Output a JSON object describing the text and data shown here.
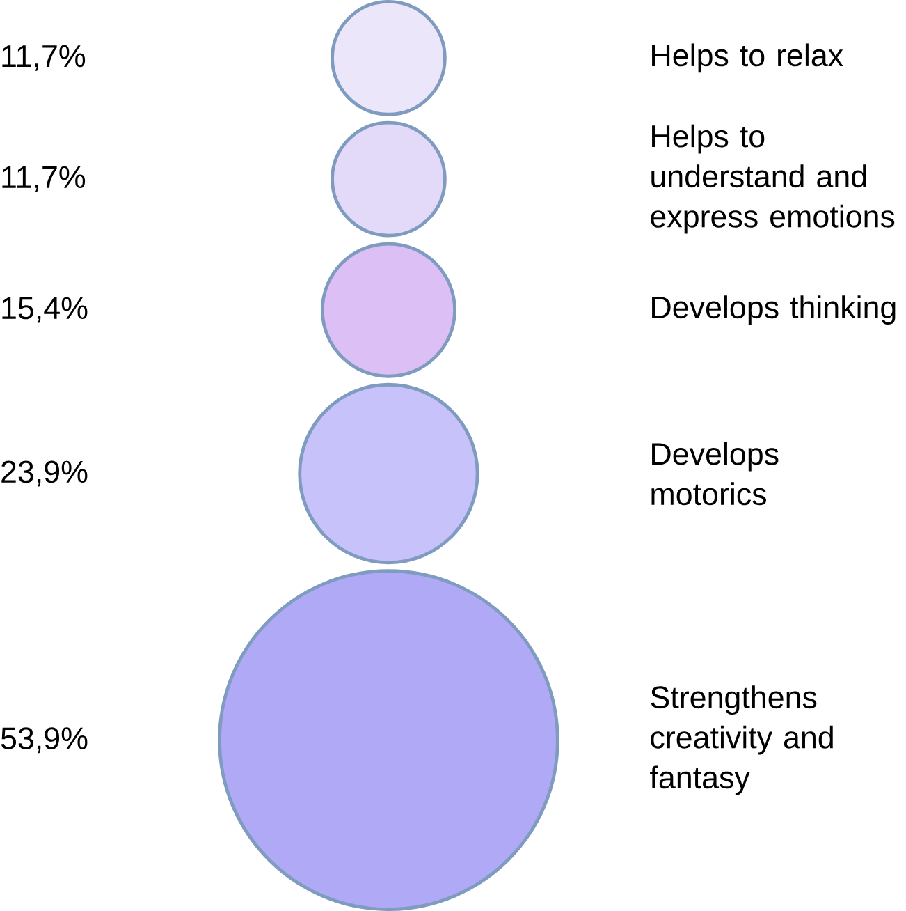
{
  "chart_data": {
    "type": "other",
    "categories": [
      "Helps to relax",
      "Helps to understand and express emotions",
      "Develops thinking",
      "Develops motorics",
      "Strengthens creativity and fantasy"
    ],
    "values": [
      11.7,
      11.7,
      15.4,
      23.9,
      53.9
    ],
    "value_labels": [
      "11,7%",
      "11,7%",
      "15,4%",
      "23,9%",
      "53,9%"
    ],
    "colors": [
      "#ece6fb",
      "#e3d9f8",
      "#dcc0f5",
      "#c7c3fa",
      "#b0a9f6"
    ]
  }
}
